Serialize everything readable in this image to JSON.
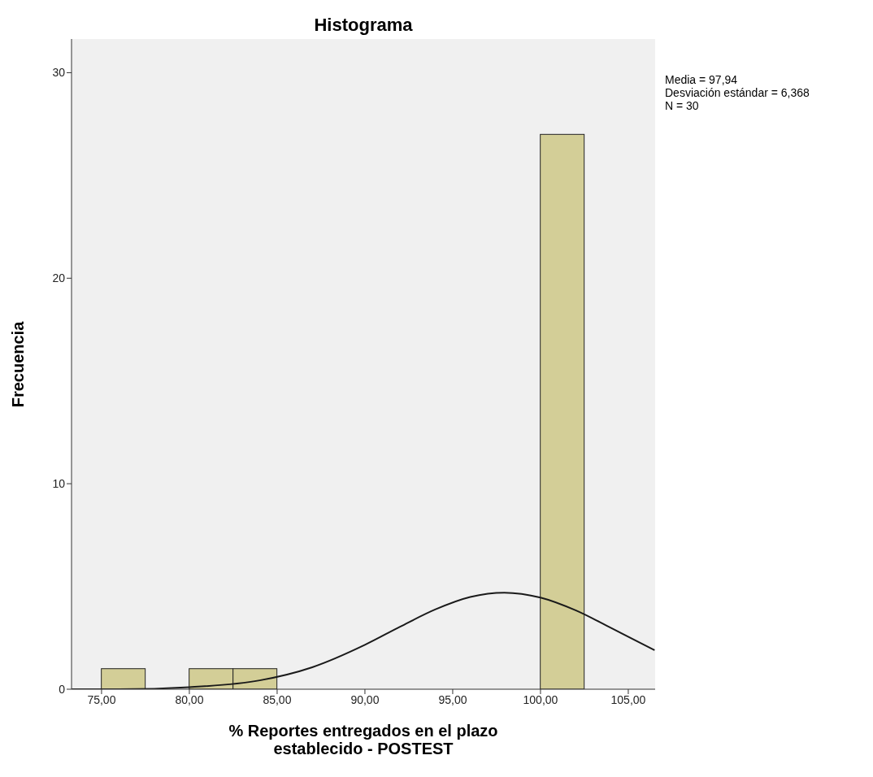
{
  "chart_data": {
    "type": "histogram",
    "title": "Histograma",
    "xlabel": "% Reportes entregados en el plazo establecido - POSTEST",
    "ylabel": "Frecuencia",
    "bins": [
      75,
      77.5,
      80,
      82.5,
      85,
      87.5,
      90,
      92.5,
      95,
      97.5,
      100,
      102.5
    ],
    "values": [
      1,
      0,
      1,
      1,
      0,
      0,
      0,
      0,
      0,
      0,
      27
    ],
    "color": "#d3ce97",
    "series": [
      {
        "type": "line",
        "color": "#1a1a1a",
        "x": [
          73.3,
          76,
          80,
          84,
          87,
          90,
          92,
          94,
          96,
          97.94,
          100,
          102,
          104,
          106.5
        ],
        "values": [
          0,
          0,
          0.1,
          0.43,
          1.07,
          2.16,
          3.04,
          3.88,
          4.49,
          4.7,
          4.46,
          3.84,
          2.99,
          1.9
        ]
      }
    ],
    "xlim": [
      73.29,
      106.53
    ],
    "ylim": [
      0,
      31.64
    ],
    "xticks": [
      {
        "value": 75,
        "label": "75,00"
      },
      {
        "value": 80,
        "label": "80,00"
      },
      {
        "value": 85,
        "label": "85,00"
      },
      {
        "value": 90,
        "label": "90,00"
      },
      {
        "value": 95,
        "label": "95,00"
      },
      {
        "value": 100,
        "label": "100,00"
      },
      {
        "value": 105,
        "label": "105,00"
      }
    ],
    "yticks": [
      0,
      10,
      20,
      30
    ],
    "annotations": [
      "Media = 97,94",
      "Desviación estándar = 6,368",
      "N = 30"
    ]
  }
}
